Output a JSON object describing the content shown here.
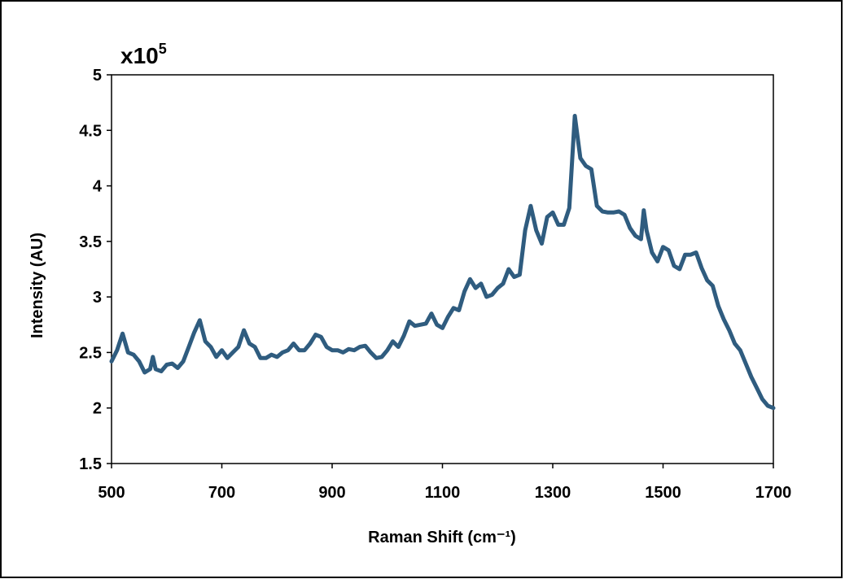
{
  "chart_data": {
    "type": "line",
    "y_multiplier": {
      "base": "x10",
      "exponent": "5"
    },
    "xlabel": "Raman Shift (cm⁻¹)",
    "ylabel": "Intensity (AU)",
    "x": [
      500,
      510,
      520,
      530,
      540,
      550,
      560,
      570,
      575,
      580,
      590,
      600,
      610,
      620,
      630,
      640,
      650,
      660,
      670,
      680,
      690,
      700,
      710,
      720,
      730,
      740,
      750,
      760,
      770,
      780,
      790,
      800,
      810,
      820,
      830,
      840,
      850,
      860,
      870,
      880,
      890,
      900,
      910,
      920,
      930,
      940,
      950,
      960,
      970,
      980,
      990,
      1000,
      1010,
      1020,
      1030,
      1040,
      1050,
      1060,
      1070,
      1080,
      1090,
      1100,
      1110,
      1120,
      1130,
      1140,
      1150,
      1160,
      1170,
      1180,
      1190,
      1200,
      1210,
      1220,
      1230,
      1240,
      1250,
      1260,
      1270,
      1280,
      1290,
      1300,
      1310,
      1320,
      1330,
      1340,
      1350,
      1360,
      1370,
      1380,
      1390,
      1400,
      1410,
      1420,
      1430,
      1440,
      1450,
      1460,
      1465,
      1470,
      1480,
      1490,
      1500,
      1510,
      1520,
      1530,
      1540,
      1550,
      1560,
      1570,
      1580,
      1590,
      1600,
      1610,
      1620,
      1630,
      1640,
      1650,
      1660,
      1670,
      1680,
      1690,
      1700
    ],
    "series": [
      {
        "color": "#2f5c7f",
        "values": [
          2.42,
          2.52,
          2.67,
          2.5,
          2.48,
          2.42,
          2.32,
          2.35,
          2.46,
          2.35,
          2.33,
          2.39,
          2.4,
          2.36,
          2.42,
          2.55,
          2.68,
          2.79,
          2.6,
          2.55,
          2.46,
          2.52,
          2.45,
          2.5,
          2.55,
          2.7,
          2.58,
          2.55,
          2.45,
          2.45,
          2.48,
          2.46,
          2.5,
          2.52,
          2.58,
          2.52,
          2.52,
          2.58,
          2.66,
          2.64,
          2.55,
          2.52,
          2.52,
          2.5,
          2.53,
          2.52,
          2.55,
          2.56,
          2.5,
          2.45,
          2.46,
          2.52,
          2.6,
          2.55,
          2.65,
          2.78,
          2.74,
          2.75,
          2.76,
          2.85,
          2.75,
          2.72,
          2.82,
          2.9,
          2.88,
          3.05,
          3.16,
          3.08,
          3.12,
          3.0,
          3.02,
          3.08,
          3.12,
          3.25,
          3.18,
          3.2,
          3.6,
          3.82,
          3.6,
          3.48,
          3.72,
          3.76,
          3.65,
          3.65,
          3.8,
          4.63,
          4.25,
          4.18,
          4.15,
          3.82,
          3.77,
          3.76,
          3.76,
          3.77,
          3.74,
          3.62,
          3.55,
          3.52,
          3.78,
          3.6,
          3.4,
          3.32,
          3.45,
          3.42,
          3.28,
          3.25,
          3.38,
          3.38,
          3.4,
          3.26,
          3.15,
          3.1,
          2.92,
          2.8,
          2.7,
          2.58,
          2.52,
          2.4,
          2.28,
          2.18,
          2.08,
          2.02,
          2.0
        ]
      }
    ],
    "xlim": [
      500,
      1700
    ],
    "xticks": [
      500,
      700,
      900,
      1100,
      1300,
      1500,
      1700
    ],
    "ylim": [
      1.5,
      5
    ],
    "yticks": [
      1.5,
      2,
      2.5,
      3,
      3.5,
      4,
      4.5,
      5
    ]
  }
}
